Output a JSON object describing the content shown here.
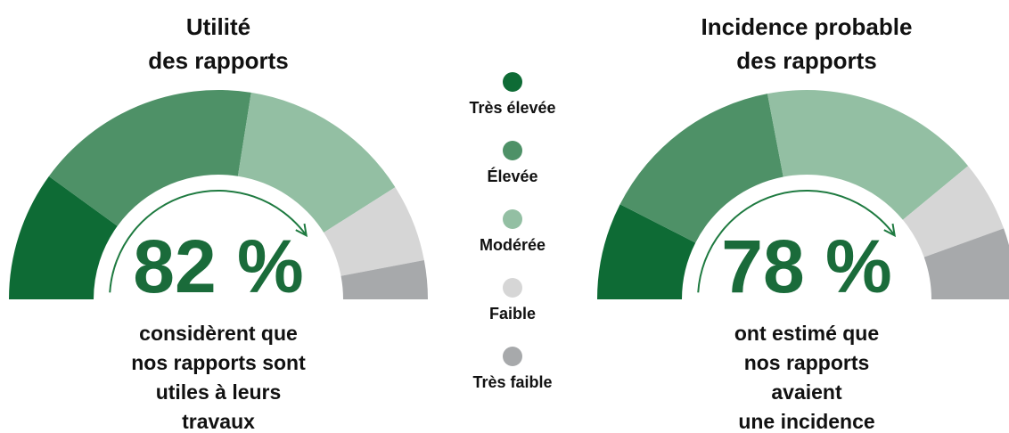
{
  "chart_data": [
    {
      "type": "semi-donut",
      "title": [
        "Utilité",
        "des rapports"
      ],
      "categories": [
        "Très élevée",
        "Élevée",
        "Modérée",
        "Faible",
        "Très faible"
      ],
      "values": [
        20,
        35,
        27,
        12,
        6
      ],
      "colors": [
        "#0e6b35",
        "#4e9167",
        "#93bfa3",
        "#d6d6d6",
        "#a7a9ab"
      ],
      "headline": "82 %",
      "caption": [
        "considèrent que",
        "nos rapports sont",
        "utiles à leurs",
        "travaux"
      ]
    },
    {
      "type": "semi-donut",
      "title": [
        "Incidence probable",
        "des rapports"
      ],
      "categories": [
        "Très élevée",
        "Élevée",
        "Modérée",
        "Faible",
        "Très faible"
      ],
      "values": [
        15,
        29,
        34,
        11,
        11
      ],
      "colors": [
        "#0e6b35",
        "#4e9167",
        "#93bfa3",
        "#d6d6d6",
        "#a7a9ab"
      ],
      "headline": "78 %",
      "caption": [
        "ont estimé que",
        "nos rapports",
        "avaient",
        "une incidence"
      ]
    }
  ]
}
